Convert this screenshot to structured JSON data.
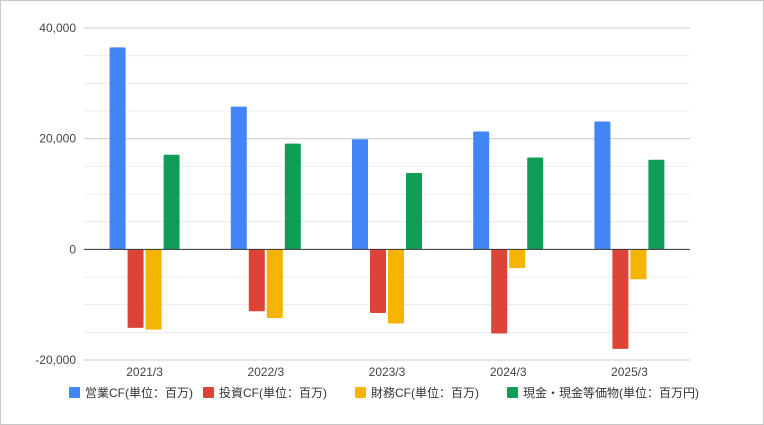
{
  "chart_data": {
    "type": "bar",
    "categories": [
      "2021/3",
      "2022/3",
      "2023/3",
      "2024/3",
      "2025/3"
    ],
    "series": [
      {
        "name": "営業CF(単位：百万)",
        "color": "#4285f4",
        "values": [
          36500,
          25800,
          19900,
          21300,
          23100
        ]
      },
      {
        "name": "投資CF(単位：百万)",
        "color": "#db4437",
        "values": [
          -14200,
          -11200,
          -11500,
          -15200,
          -18000
        ]
      },
      {
        "name": "財務CF(単位：百万)",
        "color": "#f4b400",
        "values": [
          -14500,
          -12400,
          -13400,
          -3400,
          -5400
        ]
      },
      {
        "name": "現金・現金等価物(単位：百万円)",
        "color": "#0f9d58",
        "values": [
          17100,
          19100,
          13800,
          16600,
          16200
        ]
      }
    ],
    "ylim": [
      -20000,
      40000
    ],
    "y_ticks": [
      -20000,
      0,
      20000,
      40000
    ],
    "y_tick_labels": [
      "-20,000",
      "0",
      "20,000",
      "40,000"
    ],
    "grid": true,
    "legend_position": "bottom"
  }
}
